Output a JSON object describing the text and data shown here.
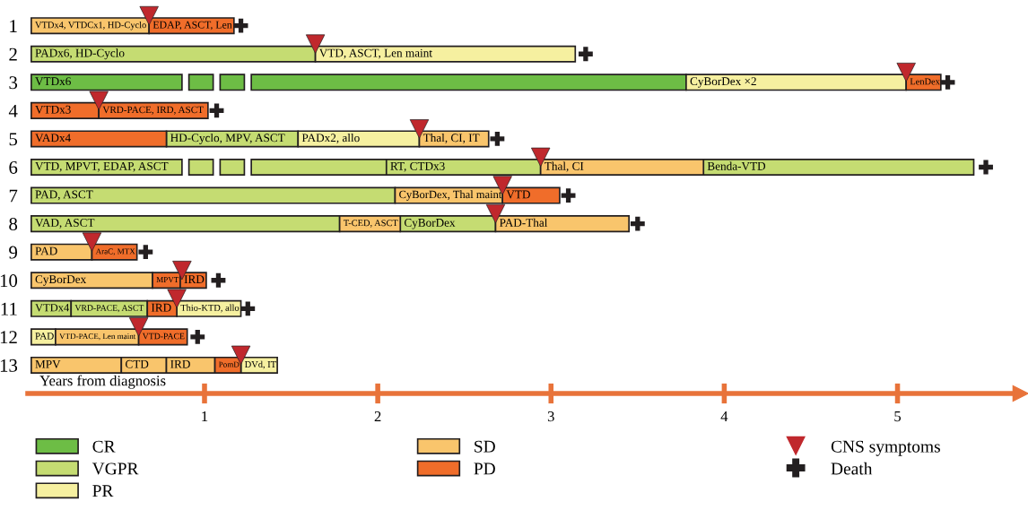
{
  "chart_data": {
    "type": "bar",
    "orientation": "horizontal",
    "xlabel": "Years from diagnosis",
    "categories": [
      "1",
      "2",
      "3",
      "4",
      "5",
      "6",
      "7",
      "8",
      "9",
      "10",
      "11",
      "12",
      "13"
    ],
    "xlim": [
      -0.02,
      5.66
    ],
    "xticks": [
      1,
      2,
      3,
      4,
      5
    ],
    "legend": "bottom",
    "grid": false,
    "series": [
      {
        "name": "CR",
        "color": "#6dbd45",
        "base": [
          null,
          null,
          0,
          null,
          null,
          null,
          null,
          null,
          null,
          null,
          null,
          null,
          null
        ],
        "values": [
          null,
          null,
          0.87,
          null,
          null,
          null,
          null,
          null,
          null,
          null,
          null,
          null,
          null
        ],
        "value_labels": [
          null,
          null,
          "VTDx6",
          null,
          null,
          null,
          null,
          null,
          null,
          null,
          null,
          null,
          null
        ]
      },
      {
        "color": "#6dbd45",
        "base": [
          null,
          null,
          0.91,
          null,
          null,
          null,
          null,
          null,
          null,
          null,
          null,
          null,
          null
        ],
        "values": [
          null,
          null,
          0.14,
          null,
          null,
          null,
          null,
          null,
          null,
          null,
          null,
          null,
          null
        ]
      },
      {
        "color": "#6dbd45",
        "base": [
          null,
          null,
          1.09,
          null,
          null,
          null,
          null,
          null,
          null,
          null,
          null,
          null,
          null
        ],
        "values": [
          null,
          null,
          0.14,
          null,
          null,
          null,
          null,
          null,
          null,
          null,
          null,
          null,
          null
        ]
      },
      {
        "color": "#6dbd45",
        "base": [
          null,
          null,
          1.27,
          null,
          null,
          null,
          null,
          null,
          null,
          null,
          null,
          null,
          null
        ],
        "values": [
          null,
          null,
          2.51,
          null,
          null,
          null,
          null,
          null,
          null,
          null,
          null,
          null,
          null
        ]
      },
      {
        "name": "VGPR",
        "color": "#c5dc72",
        "base": [
          null,
          0,
          null,
          null,
          0.78,
          0,
          0,
          0,
          null,
          null,
          0,
          null,
          null
        ],
        "values": [
          null,
          1.64,
          null,
          null,
          0.76,
          0.87,
          2.1,
          1.78,
          null,
          null,
          0.23,
          null,
          null
        ],
        "value_labels": [
          null,
          "PADx6, HD-Cyclo",
          null,
          null,
          "HD-Cyclo, MPV, ASCT",
          "VTD, MPVT, EDAP, ASCT",
          "PAD, ASCT",
          "VAD, ASCT",
          null,
          null,
          "VTDx4",
          null,
          null
        ]
      },
      {
        "color": "#c5dc72",
        "base": [
          null,
          null,
          null,
          null,
          null,
          0.91,
          null,
          2.13,
          null,
          null,
          0.23,
          null,
          null
        ],
        "values": [
          null,
          null,
          null,
          null,
          null,
          0.14,
          null,
          0.55,
          null,
          null,
          0.44,
          null,
          null
        ],
        "value_labels": [
          null,
          null,
          null,
          null,
          null,
          null,
          null,
          "CyBorDex",
          null,
          null,
          "VRD-PACE, ASCT",
          null,
          null
        ]
      },
      {
        "color": "#c5dc72",
        "base": [
          null,
          null,
          null,
          null,
          null,
          1.09,
          null,
          null,
          null,
          null,
          null,
          null,
          null
        ],
        "values": [
          null,
          null,
          null,
          null,
          null,
          0.14,
          null,
          null,
          null,
          null,
          null,
          null,
          null
        ]
      },
      {
        "color": "#c5dc72",
        "base": [
          null,
          null,
          null,
          null,
          null,
          1.27,
          null,
          null,
          null,
          null,
          null,
          null,
          null
        ],
        "values": [
          null,
          null,
          null,
          null,
          null,
          0.78,
          null,
          null,
          null,
          null,
          null,
          null,
          null
        ]
      },
      {
        "color": "#c5dc72",
        "base": [
          null,
          null,
          null,
          null,
          null,
          2.05,
          null,
          null,
          null,
          null,
          null,
          null,
          null
        ],
        "values": [
          null,
          null,
          null,
          null,
          null,
          0.89,
          null,
          null,
          null,
          null,
          null,
          null,
          null
        ],
        "value_labels": [
          null,
          null,
          null,
          null,
          null,
          "RT, CTDx3",
          null,
          null,
          null,
          null,
          null,
          null,
          null
        ]
      },
      {
        "color": "#c5dc72",
        "base": [
          null,
          null,
          null,
          null,
          null,
          3.88,
          null,
          null,
          null,
          null,
          null,
          null,
          null
        ],
        "values": [
          null,
          null,
          null,
          null,
          null,
          1.56,
          null,
          null,
          null,
          null,
          null,
          null,
          null
        ],
        "value_labels": [
          null,
          null,
          null,
          null,
          null,
          "Benda-VTD",
          null,
          null,
          null,
          null,
          null,
          null,
          null
        ]
      },
      {
        "name": "PR",
        "color": "#f6f0a0",
        "base": [
          null,
          1.64,
          3.78,
          null,
          1.54,
          null,
          null,
          null,
          null,
          null,
          0.84,
          0,
          1.21
        ],
        "values": [
          null,
          1.5,
          1.27,
          null,
          0.7,
          null,
          null,
          null,
          null,
          null,
          0.37,
          0.14,
          0.21
        ],
        "value_labels": [
          null,
          "VTD, ASCT, Len maint",
          null,
          null,
          "PADx2, allo",
          null,
          null,
          null,
          null,
          null,
          "Thio-KTD, allo",
          "PAD",
          "DVd, IT"
        ]
      },
      {
        "name": "SD",
        "color": "#f9c56c",
        "base": [
          0,
          null,
          null,
          null,
          2.24,
          2.94,
          2.1,
          1.78,
          0,
          0,
          null,
          0.14,
          0
        ],
        "values": [
          0.68,
          null,
          null,
          null,
          0.4,
          0.94,
          0.62,
          0.35,
          0.35,
          0.7,
          null,
          0.48,
          0.52
        ],
        "value_labels": [
          "VTDx4, VTDCx1, HD-Cyclo",
          null,
          null,
          null,
          "Thal, CI, IT",
          "Thal, CI",
          "CyBorDex, Thal maint",
          "T-CED, ASCT",
          "PAD",
          "CyBorDex",
          null,
          "VTD-PACE, Len maint",
          "MPV"
        ]
      },
      {
        "color": "#f9c56c",
        "base": [
          null,
          null,
          null,
          null,
          null,
          null,
          null,
          2.68,
          null,
          null,
          null,
          null,
          0.52
        ],
        "values": [
          null,
          null,
          null,
          null,
          null,
          null,
          null,
          0.77,
          null,
          null,
          null,
          null,
          0.26
        ],
        "value_labels": [
          null,
          null,
          null,
          null,
          null,
          null,
          null,
          "PAD-Thal",
          null,
          null,
          null,
          null,
          "CTD"
        ]
      },
      {
        "color": "#f9c56c",
        "base": [
          null,
          null,
          null,
          null,
          null,
          null,
          null,
          null,
          null,
          null,
          null,
          null,
          0.78
        ],
        "values": [
          null,
          null,
          null,
          null,
          null,
          null,
          null,
          null,
          null,
          null,
          null,
          null,
          0.28
        ],
        "value_labels": [
          null,
          null,
          null,
          null,
          null,
          null,
          null,
          null,
          null,
          null,
          null,
          null,
          "IRD"
        ]
      },
      {
        "name": "PD",
        "color": "#f06d2a",
        "base": [
          0.68,
          null,
          5.05,
          0,
          0,
          null,
          2.72,
          null,
          0.35,
          0.7,
          0.67,
          0.62,
          1.06
        ],
        "values": [
          0.49,
          null,
          0.2,
          0.39,
          0.78,
          null,
          0.33,
          null,
          0.26,
          0.16,
          0.17,
          0.28,
          0.15
        ],
        "value_labels": [
          "EDAP, ASCT, Len",
          null,
          "LenDex",
          "VTDx3",
          "VADx4",
          null,
          "VTD",
          null,
          "AraC, MTX",
          "MPVT",
          "IRD",
          "VTD-PACE",
          "PomD"
        ]
      },
      {
        "color": "#f06d2a",
        "base": [
          null,
          null,
          null,
          0.39,
          null,
          null,
          null,
          null,
          null,
          0.86,
          null,
          null,
          null
        ],
        "values": [
          null,
          null,
          null,
          0.63,
          null,
          null,
          null,
          null,
          null,
          0.15,
          null,
          null,
          null
        ],
        "value_labels": [
          null,
          null,
          null,
          "VRD-PACE, IRD, ASCT",
          null,
          null,
          null,
          null,
          null,
          "IRD",
          null,
          null,
          null
        ]
      },
      {
        "name": "CNS symptoms",
        "type": "scatter",
        "marker": "triangle",
        "color": "#c0282d",
        "values": [
          0.68,
          1.64,
          5.05,
          0.39,
          2.24,
          2.94,
          2.72,
          2.68,
          0.35,
          0.87,
          0.84,
          0.62,
          1.21
        ]
      },
      {
        "name": "Death",
        "type": "scatter",
        "marker": "cross",
        "color": "#231f20",
        "values": [
          1.21,
          3.2,
          5.29,
          1.07,
          2.69,
          5.51,
          3.1,
          3.5,
          0.66,
          1.08,
          1.25,
          0.96,
          null
        ]
      }
    ],
    "annotations": [
      {
        "text": "CyBorDex ×2",
        "x": 3.78,
        "y": "3"
      }
    ]
  }
}
